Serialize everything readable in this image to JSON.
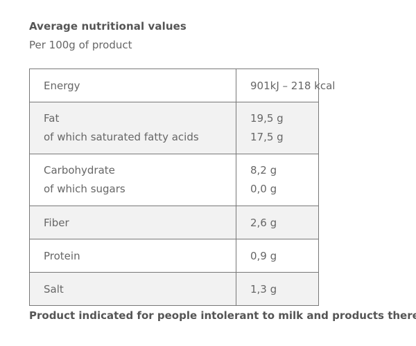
{
  "heading": {
    "title": "Average nutritional values",
    "subtitle": "Per 100g of product"
  },
  "rows": [
    {
      "name": "Energy",
      "value": "901kJ – 218 kcal"
    },
    {
      "name": "Fat",
      "value": "19,5 g",
      "sub_name": "of which saturated fatty acids",
      "sub_value": "17,5 g"
    },
    {
      "name": "Carbohydrate",
      "value": "8,2 g",
      "sub_name": "of which sugars",
      "sub_value": "0,0 g"
    },
    {
      "name": "Fiber",
      "value": "2,6 g"
    },
    {
      "name": "Protein",
      "value": "0,9 g"
    },
    {
      "name": "Salt",
      "value": "1,3 g"
    }
  ],
  "footer_note": "Product indicated for people intolerant to milk and products thereof",
  "colors": {
    "text": "#555555",
    "border": "#777777",
    "shaded_row": "#f2f2f2"
  }
}
